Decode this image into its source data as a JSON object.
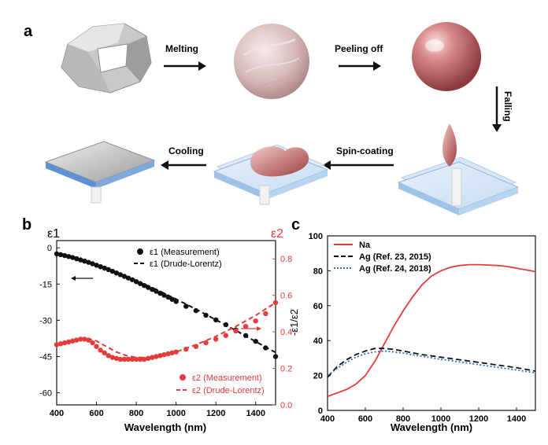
{
  "panel_a": {
    "label": "a",
    "steps": {
      "melting": "Melting",
      "peeling": "Peeling off",
      "falling": "Falling",
      "spin": "Spin-coating",
      "cooling": "Cooling"
    }
  },
  "chart_data": [
    {
      "panel": "b",
      "type": "scatter",
      "xlabel": "Wavelength (nm)",
      "ylabel_left": "ε1",
      "ylabel_right": "ε2",
      "xlim": [
        400,
        1500
      ],
      "ylim_left": [
        -65,
        3
      ],
      "ylim_right": [
        0,
        0.9
      ],
      "xticks": [
        "400",
        "600",
        "800",
        "1000",
        "1200",
        "1400"
      ],
      "yticks_left": [
        "0",
        "-15",
        "-30",
        "-45",
        "-60"
      ],
      "yticks_right": [
        "0.0",
        "0.2",
        "0.4",
        "0.6",
        "0.8"
      ],
      "legend_top": {
        "measure": "ε1 (Measurement)",
        "model": "ε1 (Drude-Lorentz)"
      },
      "legend_bottom": {
        "measure": "ε2 (Measurement)",
        "model": "ε2 (Drude-Lorentz)"
      },
      "series": [
        {
          "name": "ε1 (Measurement)",
          "axis": "left",
          "style": "markers",
          "color": "#111111",
          "x": [
            400,
            420,
            440,
            460,
            480,
            500,
            520,
            540,
            560,
            580,
            600,
            620,
            640,
            660,
            680,
            700,
            720,
            740,
            760,
            780,
            800,
            820,
            840,
            860,
            880,
            900,
            920,
            940,
            960,
            980,
            1000,
            1050,
            1100,
            1150,
            1200,
            1250,
            1300,
            1350,
            1400,
            1450,
            1500
          ],
          "y": [
            -2.5,
            -2.8,
            -3.2,
            -3.6,
            -4.0,
            -4.5,
            -5.0,
            -5.5,
            -6.0,
            -6.6,
            -7.2,
            -7.8,
            -8.4,
            -9.0,
            -9.7,
            -10.4,
            -11.1,
            -11.8,
            -12.5,
            -13.2,
            -14.0,
            -14.8,
            -15.6,
            -16.4,
            -17.2,
            -18.0,
            -18.8,
            -19.6,
            -20.4,
            -21.3,
            -22.2,
            -24.2,
            -26.0,
            -27.9,
            -29.8,
            -31.8,
            -34.0,
            -36.3,
            -38.7,
            -41.4,
            -45.0
          ]
        },
        {
          "name": "ε1 (Drude-Lorentz)",
          "axis": "left",
          "style": "dashed",
          "color": "#111111",
          "x": [
            400,
            500,
            600,
            700,
            800,
            900,
            1000,
            1100,
            1200,
            1300,
            1400,
            1500
          ],
          "y": [
            -2.6,
            -4.8,
            -7.4,
            -10.3,
            -13.6,
            -17.2,
            -21.2,
            -25.4,
            -29.8,
            -34.2,
            -38.8,
            -43.3
          ]
        },
        {
          "name": "ε2 (Measurement)",
          "axis": "right",
          "style": "markers",
          "color": "#e53b3b",
          "x": [
            400,
            420,
            440,
            460,
            480,
            500,
            520,
            540,
            560,
            580,
            600,
            620,
            640,
            660,
            680,
            700,
            720,
            740,
            760,
            780,
            800,
            820,
            840,
            860,
            880,
            900,
            920,
            940,
            960,
            980,
            1000,
            1050,
            1100,
            1150,
            1200,
            1250,
            1300,
            1350,
            1400,
            1450,
            1500
          ],
          "y": [
            0.33,
            0.335,
            0.34,
            0.345,
            0.35,
            0.355,
            0.36,
            0.36,
            0.355,
            0.34,
            0.32,
            0.3,
            0.285,
            0.27,
            0.26,
            0.255,
            0.25,
            0.25,
            0.25,
            0.25,
            0.25,
            0.25,
            0.25,
            0.255,
            0.26,
            0.265,
            0.27,
            0.275,
            0.28,
            0.285,
            0.29,
            0.305,
            0.32,
            0.34,
            0.36,
            0.38,
            0.405,
            0.43,
            0.46,
            0.5,
            0.56
          ]
        },
        {
          "name": "ε2 (Drude-Lorentz)",
          "axis": "right",
          "style": "dashed",
          "color": "#e53b3b",
          "x": [
            400,
            450,
            500,
            550,
            600,
            650,
            700,
            750,
            800,
            850,
            900,
            950,
            1000,
            1100,
            1200,
            1300,
            1400,
            1500
          ],
          "y": [
            0.33,
            0.345,
            0.36,
            0.365,
            0.35,
            0.32,
            0.29,
            0.27,
            0.26,
            0.26,
            0.265,
            0.275,
            0.29,
            0.33,
            0.375,
            0.43,
            0.49,
            0.56
          ]
        }
      ]
    },
    {
      "panel": "c",
      "type": "line",
      "xlabel": "Wavelength (nm)",
      "ylabel": "-ε1/ε2",
      "xlim": [
        400,
        1500
      ],
      "ylim": [
        0,
        100
      ],
      "xticks": [
        "400",
        "600",
        "800",
        "1000",
        "1200",
        "1400"
      ],
      "yticks": [
        "0",
        "20",
        "40",
        "60",
        "80",
        "100"
      ],
      "series": [
        {
          "name": "Na",
          "color": "#e53b3b",
          "style": "solid",
          "x": [
            400,
            450,
            500,
            550,
            600,
            650,
            700,
            750,
            800,
            850,
            900,
            950,
            1000,
            1050,
            1100,
            1150,
            1200,
            1250,
            1300,
            1350,
            1400,
            1450,
            1500
          ],
          "y": [
            8,
            10,
            12,
            15,
            20,
            28,
            38,
            48,
            57,
            65,
            72,
            77,
            80,
            82,
            83,
            83.5,
            83.5,
            83.3,
            83,
            82.5,
            81.5,
            80.5,
            79.5
          ]
        },
        {
          "name": "Ag (Ref. 23, 2015)",
          "color": "#111111",
          "style": "dashed",
          "x": [
            400,
            450,
            500,
            550,
            600,
            650,
            700,
            750,
            800,
            900,
            1000,
            1100,
            1200,
            1300,
            1400,
            1500
          ],
          "y": [
            19,
            25,
            29,
            32,
            34,
            35.5,
            35.5,
            35,
            34,
            32,
            30.5,
            29,
            27.5,
            26,
            24.5,
            22.5
          ]
        },
        {
          "name": "Ag (Ref. 24, 2018)",
          "color": "#2f6fc1",
          "style": "dotted",
          "x": [
            400,
            450,
            500,
            550,
            600,
            650,
            700,
            750,
            800,
            900,
            1000,
            1100,
            1200,
            1300,
            1400,
            1500
          ],
          "y": [
            20,
            24,
            27.5,
            30.5,
            32.5,
            33.5,
            34,
            33.5,
            32.8,
            31,
            29.3,
            27.8,
            26.2,
            24.7,
            23.2,
            21.5
          ]
        }
      ]
    }
  ]
}
